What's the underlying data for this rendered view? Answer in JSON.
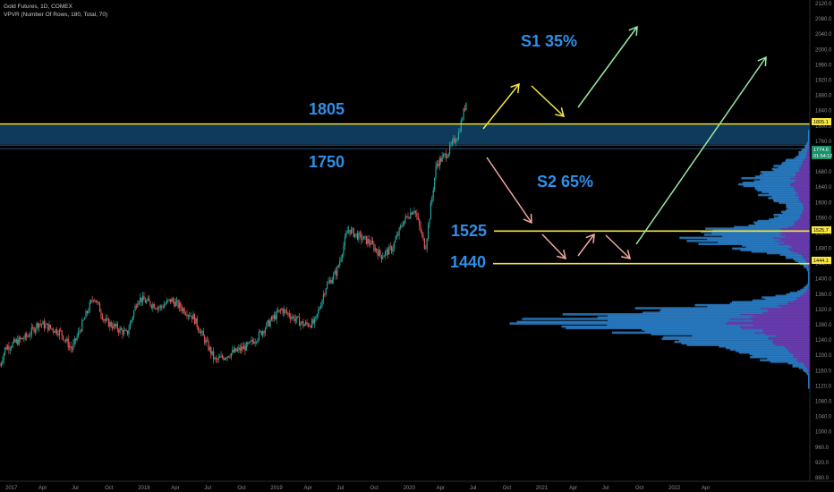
{
  "legend": {
    "line1": "Gold Futures, 1D, COMEX",
    "line2": "VPVR (Number Of Rows, 180, Total, 70)"
  },
  "colors": {
    "background": "#000000",
    "zone_fill": "#0f3a5c",
    "level_line": "#f5e642",
    "level_text": "#2f8fe8",
    "candle_up": "#26a69a",
    "candle_down": "#ef5350",
    "arrow_yellow": "#f5e642",
    "arrow_pink": "#f4a9a1",
    "arrow_green": "#9be8a2",
    "vp_blue": "#2a7fc9",
    "vp_purple": "#6f3fb8"
  },
  "annotations": {
    "level_1805": "1805",
    "level_1750": "1750",
    "level_1525": "1525",
    "level_1440": "1440",
    "scenario_1": "S1 35%",
    "scenario_2": "S2 65%"
  },
  "price_tags": {
    "tag_1805": "1805.1",
    "tag_1525": "1525.7",
    "tag_1444": "1444.1",
    "current_price": "1774.6",
    "current_time": "01:54:12"
  },
  "chart_data": {
    "type": "line",
    "title": "Gold Futures, 1D, COMEX",
    "xlabel": "",
    "ylabel": "",
    "ylim": [
      880,
      2120
    ],
    "y_ticks": [
      "2120.0",
      "2080.0",
      "2040.0",
      "2000.0",
      "1960.0",
      "1920.0",
      "1880.0",
      "1840.0",
      "1800.0",
      "1760.0",
      "1720.0",
      "1680.0",
      "1640.0",
      "1600.0",
      "1560.0",
      "1520.0",
      "1480.0",
      "1440.0",
      "1400.0",
      "1360.0",
      "1320.0",
      "1280.0",
      "1240.0",
      "1200.0",
      "1160.0",
      "1120.0",
      "1080.0",
      "1040.0",
      "1000.0",
      "960.0",
      "920.0",
      "880.0"
    ],
    "x_ticks": [
      "2017",
      "Apr",
      "Jul",
      "Oct",
      "2018",
      "Apr",
      "Jul",
      "Oct",
      "2019",
      "Apr",
      "Jul",
      "Oct",
      "2020",
      "Apr",
      "Jul",
      "Oct",
      "2021",
      "Apr",
      "Jul",
      "Oct",
      "2022",
      "Apr"
    ],
    "series": [
      {
        "x": [
          "2016-12",
          "2017-01",
          "2017-03",
          "2017-04",
          "2017-06",
          "2017-07",
          "2017-09",
          "2017-10",
          "2017-12",
          "2018-01",
          "2018-03",
          "2018-04",
          "2018-06",
          "2018-08",
          "2018-09",
          "2018-11",
          "2018-12",
          "2019-01",
          "2019-02",
          "2019-04",
          "2019-05",
          "2019-06",
          "2019-07",
          "2019-08",
          "2019-09",
          "2019-10",
          "2019-11",
          "2019-12",
          "2020-01",
          "2020-02",
          "2020-03",
          "2020-04",
          "2020-05",
          "2020-06",
          "2020-07",
          "2020-08",
          "2020-09"
        ],
        "values": [
          1125,
          1220,
          1250,
          1285,
          1260,
          1215,
          1355,
          1290,
          1255,
          1350,
          1325,
          1345,
          1300,
          1185,
          1200,
          1225,
          1255,
          1290,
          1320,
          1280,
          1285,
          1380,
          1420,
          1530,
          1510,
          1495,
          1460,
          1480,
          1550,
          1585,
          1480,
          1700,
          1730,
          1780,
          1900,
          1965,
          1880
        ]
      }
    ],
    "levels": [
      1805,
      1750,
      1525,
      1440
    ],
    "zone": [
      1750,
      1805
    ],
    "volume_profile": true
  }
}
